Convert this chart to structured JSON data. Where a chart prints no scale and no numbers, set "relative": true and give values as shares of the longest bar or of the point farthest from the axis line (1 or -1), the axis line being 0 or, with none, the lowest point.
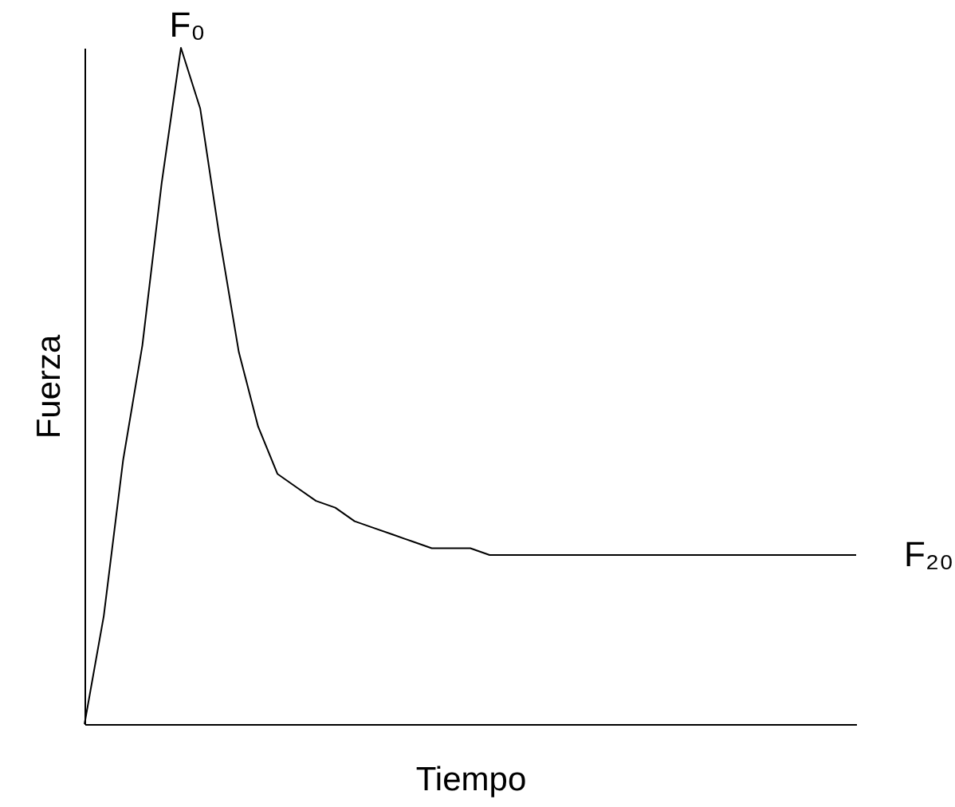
{
  "chart_data": {
    "type": "line",
    "relative": true,
    "xlabel": "Tiempo",
    "ylabel": "Fuerza",
    "color": "#000000",
    "marker": "none",
    "line_style": "solid",
    "annotations": [
      "F₀",
      "F₂₀"
    ],
    "categories": [
      null,
      null,
      null,
      null,
      null,
      null,
      null,
      null,
      null,
      null,
      null,
      null,
      null,
      null,
      null,
      null,
      null,
      null,
      null,
      null,
      null,
      null,
      null,
      null,
      null,
      null,
      null,
      null,
      null,
      null,
      null,
      null,
      null,
      null,
      null,
      null,
      null,
      null,
      null,
      null,
      null
    ],
    "values": [
      0,
      0.16,
      0.39,
      0.56,
      0.8,
      1,
      0.91,
      0.72,
      0.55,
      0.44,
      0.37,
      0.35,
      0.33,
      0.32,
      0.3,
      0.29,
      0.28,
      0.27,
      0.26,
      0.26,
      0.26,
      0.25,
      0.25,
      0.25,
      0.25,
      0.25,
      0.25,
      0.25,
      0.25,
      0.25,
      0.25,
      0.25,
      0.25,
      0.25,
      0.25,
      0.25,
      0.25,
      0.25,
      0.25,
      0.25,
      0.25
    ]
  }
}
